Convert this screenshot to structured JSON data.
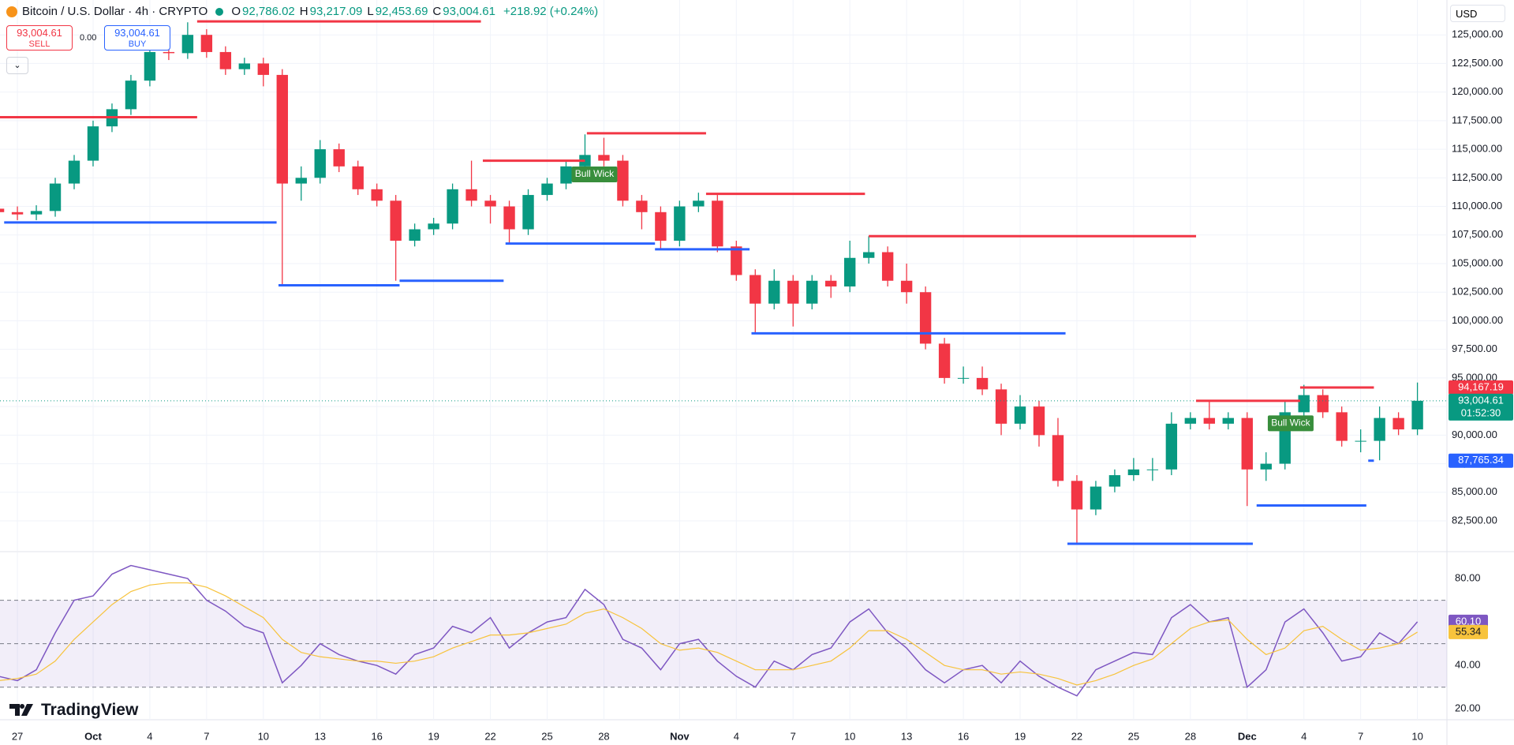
{
  "chart_data": {
    "type": "candlestick",
    "header": {
      "symbol": "Bitcoin / U.S. Dollar · 4h · CRYPTO",
      "ohlc": [
        {
          "key": "O",
          "text": "92,786.02"
        },
        {
          "key": "H",
          "text": "93,217.09"
        },
        {
          "key": "L",
          "text": "92,453.69"
        },
        {
          "key": "C",
          "text": "93,004.61"
        }
      ],
      "change": "+218.92 (+0.24%)"
    },
    "trade": {
      "sell_price": "93,004.61",
      "sell_label": "SELL",
      "spread": "0.00",
      "buy_price": "93,004.61",
      "buy_label": "BUY"
    },
    "currency": "USD",
    "brand": "TradingView",
    "up_color": "#089981",
    "down_color": "#f23645",
    "grid": true,
    "xlim": [
      -0.92,
      75.56
    ],
    "ylim": [
      79880,
      128050
    ],
    "xticks": [
      {
        "value": 0,
        "label": "27"
      },
      {
        "value": 4,
        "label": "Oct"
      },
      {
        "value": 7,
        "label": "4"
      },
      {
        "value": 10,
        "label": "7"
      },
      {
        "value": 13,
        "label": "10"
      },
      {
        "value": 16,
        "label": "13"
      },
      {
        "value": 19,
        "label": "16"
      },
      {
        "value": 22,
        "label": "19"
      },
      {
        "value": 25,
        "label": "22"
      },
      {
        "value": 28,
        "label": "25"
      },
      {
        "value": 31,
        "label": "28"
      },
      {
        "value": 35,
        "label": "Nov"
      },
      {
        "value": 38,
        "label": "4"
      },
      {
        "value": 41,
        "label": "7"
      },
      {
        "value": 44,
        "label": "10"
      },
      {
        "value": 47,
        "label": "13"
      },
      {
        "value": 50,
        "label": "16"
      },
      {
        "value": 53,
        "label": "19"
      },
      {
        "value": 56,
        "label": "22"
      },
      {
        "value": 59,
        "label": "25"
      },
      {
        "value": 62,
        "label": "28"
      },
      {
        "value": 65,
        "label": "Dec"
      },
      {
        "value": 68,
        "label": "4"
      },
      {
        "value": 71,
        "label": "7"
      },
      {
        "value": 74,
        "label": "10"
      }
    ],
    "yticks": [
      {
        "value": 82500,
        "label": "82,500.00"
      },
      {
        "value": 85000,
        "label": "85,000.00"
      },
      {
        "value": 87500,
        "label": "87,500.00"
      },
      {
        "value": 90000,
        "label": "90,000.00"
      },
      {
        "value": 92500,
        "label": "92,500.00"
      },
      {
        "value": 95000,
        "label": "95,000.00"
      },
      {
        "value": 97500,
        "label": "97,500.00"
      },
      {
        "value": 100000,
        "label": "100,000.00"
      },
      {
        "value": 102500,
        "label": "102,500.00"
      },
      {
        "value": 105000,
        "label": "105,000.00"
      },
      {
        "value": 107500,
        "label": "107,500.00"
      },
      {
        "value": 110000,
        "label": "110,000.00"
      },
      {
        "value": 112500,
        "label": "112,500.00"
      },
      {
        "value": 115000,
        "label": "115,000.00"
      },
      {
        "value": 117500,
        "label": "117,500.00"
      },
      {
        "value": 120000,
        "label": "120,000.00"
      },
      {
        "value": 122500,
        "label": "122,500.00"
      },
      {
        "value": 125000,
        "label": "125,000.00"
      }
    ],
    "candles": {
      "x": [
        -1,
        0,
        1,
        2,
        3,
        4,
        5,
        6,
        7,
        8,
        9,
        10,
        11,
        12,
        13,
        14,
        15,
        16,
        17,
        18,
        19,
        20,
        21,
        22,
        23,
        24,
        25,
        26,
        27,
        28,
        29,
        30,
        31,
        32,
        33,
        34,
        35,
        36,
        37,
        38,
        39,
        40,
        41,
        42,
        43,
        44,
        45,
        46,
        47,
        48,
        49,
        50,
        51,
        52,
        53,
        54,
        55,
        56,
        57,
        58,
        59,
        60,
        61,
        62,
        63,
        64,
        65,
        66,
        67,
        68,
        69,
        70,
        71,
        72,
        73,
        74
      ],
      "open": [
        109800,
        109500,
        109300,
        109600,
        112000,
        114000,
        117000,
        118500,
        121000,
        123500,
        123400,
        125000,
        123500,
        122000,
        122500,
        121500,
        112000,
        112500,
        115000,
        113500,
        111500,
        110500,
        107000,
        108000,
        108500,
        111500,
        110500,
        110000,
        108000,
        111000,
        112000,
        113500,
        114500,
        114000,
        110500,
        109500,
        107000,
        110000,
        110500,
        106500,
        104000,
        101500,
        103500,
        101500,
        103500,
        103000,
        105500,
        106000,
        103500,
        102500,
        98000,
        95000,
        95000,
        94000,
        91000,
        92500,
        90000,
        86000,
        83500,
        85500,
        86500,
        87000,
        87000,
        91000,
        91500,
        91000,
        91500,
        87000,
        87500,
        92000,
        93500,
        92000,
        89500,
        89500,
        91500,
        90500
      ],
      "high": [
        110300,
        110000,
        110100,
        112500,
        114500,
        117500,
        119000,
        121500,
        124000,
        124500,
        126100,
        125500,
        124000,
        123000,
        123000,
        122000,
        113500,
        115800,
        115500,
        114000,
        112000,
        111000,
        108500,
        109000,
        112000,
        114000,
        111000,
        110500,
        111500,
        112500,
        114000,
        116300,
        116000,
        114500,
        111000,
        110000,
        110500,
        111200,
        111000,
        107000,
        104500,
        104500,
        104000,
        104000,
        104000,
        107000,
        107400,
        106500,
        105000,
        103000,
        98500,
        96000,
        96000,
        94500,
        93500,
        93000,
        91500,
        86500,
        86000,
        87000,
        88000,
        88000,
        92000,
        92000,
        93000,
        92000,
        92000,
        88500,
        93000,
        94400,
        94000,
        92500,
        90500,
        92500,
        92000,
        94600
      ],
      "low": [
        109000,
        108800,
        108800,
        109100,
        111500,
        113500,
        116500,
        118000,
        120500,
        122800,
        122900,
        123000,
        121500,
        121500,
        120500,
        103000,
        110500,
        112000,
        113000,
        111000,
        110000,
        103500,
        106500,
        107500,
        108000,
        110000,
        108500,
        106800,
        107500,
        110500,
        111500,
        113000,
        113500,
        110000,
        108000,
        106300,
        106500,
        109500,
        106000,
        103500,
        98900,
        101000,
        99500,
        101000,
        102000,
        102500,
        105000,
        103000,
        101500,
        97500,
        94500,
        94500,
        93500,
        90000,
        90500,
        89000,
        85500,
        80600,
        83000,
        85000,
        86000,
        86000,
        86500,
        90500,
        90500,
        90500,
        83800,
        86000,
        87000,
        91500,
        91500,
        89000,
        88500,
        87800,
        90000,
        90000
      ],
      "close": [
        109500,
        109300,
        109600,
        112000,
        114000,
        117000,
        118500,
        121000,
        123500,
        123400,
        125000,
        123500,
        122000,
        122500,
        121500,
        112000,
        112500,
        115000,
        113500,
        111500,
        110500,
        107000,
        108000,
        108500,
        111500,
        110500,
        110000,
        108000,
        111000,
        112000,
        113500,
        114500,
        114000,
        110500,
        109500,
        107000,
        110000,
        110500,
        106500,
        104000,
        101500,
        103500,
        101500,
        103500,
        103000,
        105500,
        106000,
        103500,
        102500,
        98000,
        95000,
        95000,
        94000,
        91000,
        92500,
        90000,
        86000,
        83500,
        85500,
        86500,
        87000,
        87000,
        91000,
        91500,
        91000,
        91500,
        87000,
        87500,
        92000,
        93500,
        92000,
        89500,
        89500,
        91500,
        90500,
        93004.61
      ]
    },
    "last_price": {
      "value": 93004.61,
      "label": "93,004.61",
      "countdown": "01:52:30",
      "color": "#089981"
    },
    "levels": [
      {
        "color": "#f23645",
        "price": 126180,
        "x0": 9.5,
        "x1": 24.5
      },
      {
        "color": "#f23645",
        "price": 117800,
        "x0": -0.92,
        "x1": 9.5
      },
      {
        "color": "#f23645",
        "price": 116400,
        "x0": 30.1,
        "x1": 36.4
      },
      {
        "color": "#f23645",
        "price": 114000,
        "x0": 24.6,
        "x1": 30
      },
      {
        "color": "#f23645",
        "price": 111100,
        "x0": 36.4,
        "x1": 44.8
      },
      {
        "color": "#f23645",
        "price": 107400,
        "x0": 45,
        "x1": 62.3
      },
      {
        "color": "#f23645",
        "price": 93000,
        "x0": 62.3,
        "x1": 67.8
      },
      {
        "color": "#f23645",
        "price": 94167.19,
        "label": "94,167.19",
        "x0": 67.8,
        "x1": 71.7
      },
      {
        "color": "#2962ff",
        "price": 108600,
        "x0": -0.7,
        "x1": 13.7
      },
      {
        "color": "#2962ff",
        "price": 103100,
        "x0": 13.8,
        "x1": 20.2
      },
      {
        "color": "#2962ff",
        "price": 103500,
        "x0": 20.2,
        "x1": 25.7
      },
      {
        "color": "#2962ff",
        "price": 106750,
        "x0": 25.8,
        "x1": 33.7
      },
      {
        "color": "#2962ff",
        "price": 106250,
        "x0": 33.7,
        "x1": 38.7
      },
      {
        "color": "#2962ff",
        "price": 98900,
        "x0": 38.8,
        "x1": 55.4
      },
      {
        "color": "#2962ff",
        "price": 80500,
        "x0": 55.5,
        "x1": 65.3
      },
      {
        "color": "#2962ff",
        "price": 83850,
        "x0": 65.5,
        "x1": 71.3
      },
      {
        "color": "#2962ff",
        "price": 87765.34,
        "label": "87,765.34",
        "x0": 71.4,
        "x1": 71.7
      }
    ],
    "annotations": [
      {
        "text": "Bull Wick",
        "x": 30.5,
        "y": 112800
      },
      {
        "text": "Bull Wick",
        "x": 67.3,
        "y": 91030
      }
    ],
    "rsi": {
      "ylim": [
        15,
        92
      ],
      "yticks": [
        {
          "value": 80,
          "label": "80.00"
        },
        {
          "value": 40,
          "label": "40.00"
        },
        {
          "value": 20,
          "label": "20.00"
        }
      ],
      "levels": [
        70,
        50,
        30
      ],
      "series": [
        {
          "color": "#7e57c2",
          "label": "60.10",
          "values": [
            35,
            33,
            38,
            55,
            70,
            72,
            82,
            86,
            84,
            82,
            80,
            70,
            65,
            58,
            55,
            32,
            40,
            50,
            45,
            42,
            40,
            36,
            45,
            48,
            58,
            55,
            62,
            48,
            55,
            60,
            62,
            75,
            68,
            52,
            48,
            38,
            50,
            52,
            42,
            35,
            30,
            42,
            38,
            45,
            48,
            60,
            66,
            55,
            48,
            38,
            32,
            38,
            40,
            32,
            42,
            35,
            30,
            26,
            38,
            42,
            46,
            45,
            62,
            68,
            60,
            62,
            30,
            38,
            60,
            66,
            55,
            42,
            44,
            55,
            50,
            60.1
          ]
        },
        {
          "color": "#f7c33c",
          "label": "55.34",
          "values": [
            33,
            34,
            36,
            42,
            52,
            60,
            68,
            74,
            77,
            78,
            78,
            76,
            72,
            67,
            62,
            52,
            46,
            44,
            43,
            42,
            42,
            41,
            42,
            44,
            48,
            51,
            54,
            54,
            55,
            57,
            59,
            64,
            66,
            62,
            57,
            50,
            47,
            48,
            46,
            42,
            38,
            38,
            38,
            40,
            42,
            48,
            56,
            56,
            52,
            46,
            40,
            38,
            38,
            36,
            37,
            36,
            34,
            31,
            33,
            36,
            40,
            43,
            50,
            57,
            60,
            61,
            52,
            45,
            48,
            56,
            58,
            52,
            47,
            48,
            50,
            55.34
          ]
        }
      ]
    }
  }
}
